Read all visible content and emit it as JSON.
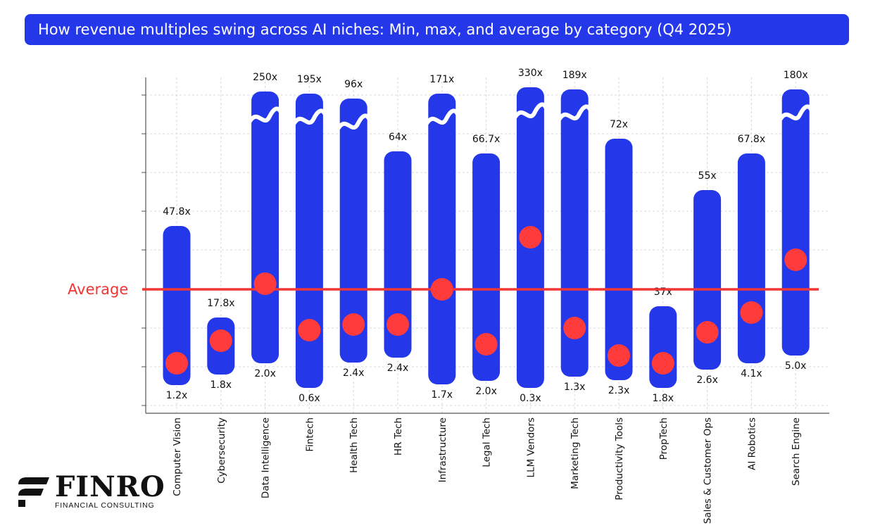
{
  "chart_data": {
    "type": "range-bar",
    "title": "How revenue multiples swing across AI niches: Min, max, and average by category (Q4 2025)",
    "categories": [
      "Computer Vision",
      "Cybersecurity",
      "Data Intelligence",
      "Fintech",
      "Health Tech",
      "HR Tech",
      "Infrastructure",
      "Legal Tech",
      "LLM Vendors",
      "Marketing Tech",
      "Productivity Tools",
      "PropTech",
      "Sales & Customer Ops",
      "AI Robotics",
      "Search Engine"
    ],
    "min_labels": [
      "1.2x",
      "1.8x",
      "2.0x",
      "0.6x",
      "2.4x",
      "2.4x",
      "1.7x",
      "2.0x",
      "0.3x",
      "1.3x",
      "2.3x",
      "1.8x",
      "2.6x",
      "4.1x",
      "5.0x"
    ],
    "max_labels": [
      "47.8x",
      "17.8x",
      "250x",
      "195x",
      "96x",
      "64x",
      "171x",
      "66.7x",
      "330x",
      "189x",
      "72x",
      "37x",
      "55x",
      "67.8x",
      "180x"
    ],
    "min": [
      1.2,
      1.8,
      2.0,
      0.6,
      2.4,
      2.4,
      1.7,
      2.0,
      0.3,
      1.3,
      2.3,
      1.8,
      2.6,
      4.1,
      5.0
    ],
    "max": [
      47.8,
      17.8,
      250,
      195,
      96,
      64,
      171,
      66.7,
      330,
      189,
      72,
      37,
      55,
      67.8,
      180
    ],
    "broken_axis": [
      false,
      false,
      true,
      true,
      true,
      false,
      true,
      false,
      true,
      true,
      false,
      false,
      false,
      false,
      true
    ],
    "average_position": [
      -0.8,
      0.6,
      0.0,
      -0.5,
      -0.4,
      -0.4,
      0.0,
      -0.7,
      0.6,
      -0.5,
      -0.8,
      -0.9,
      -0.5,
      -0.3,
      0.3
    ],
    "average_label": "Average",
    "colors": {
      "bar": "#2438ea",
      "avg_dot": "#ff3b3b",
      "avg_line": "#f23535",
      "axis": "#555555",
      "grid": "#d9d9d9",
      "title_bg": "#2438ea"
    }
  },
  "logo": {
    "name": "FINRO",
    "subtitle": "FINANCIAL CONSULTING"
  }
}
